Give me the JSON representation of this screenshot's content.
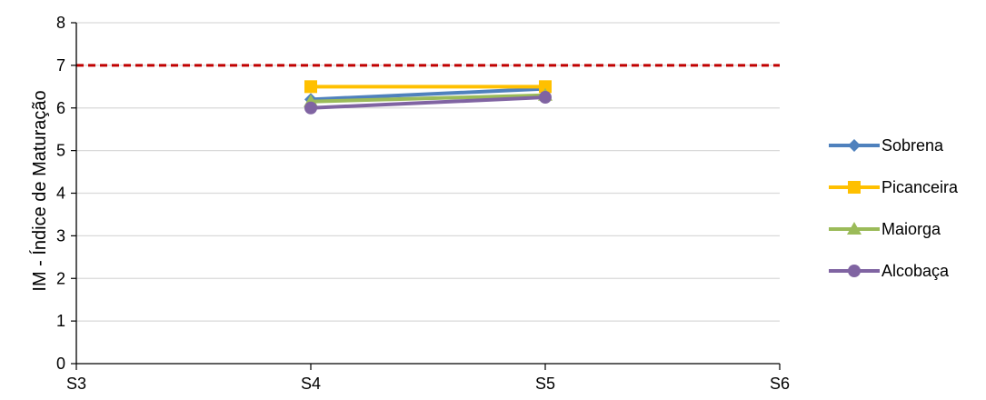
{
  "chart_data": {
    "type": "line",
    "title": "",
    "xlabel": "",
    "ylabel": "IM - Índice de Maturação",
    "categories": [
      "S3",
      "S4",
      "S5",
      "S6"
    ],
    "ylim": [
      0,
      8
    ],
    "yticks": [
      0,
      1,
      2,
      3,
      4,
      5,
      6,
      7,
      8
    ],
    "grid": true,
    "legend": "right",
    "reference_line": {
      "y": 7,
      "color": "#C00000",
      "style": "dashed"
    },
    "series": [
      {
        "name": "Sobrena",
        "color": "#4F81BD",
        "marker": "diamond",
        "values": [
          null,
          6.2,
          6.45,
          null
        ]
      },
      {
        "name": "Picanceira",
        "color": "#FFC000",
        "marker": "square",
        "values": [
          null,
          6.5,
          6.5,
          null
        ]
      },
      {
        "name": "Maiorga",
        "color": "#9BBB59",
        "marker": "triangle",
        "values": [
          null,
          6.15,
          6.3,
          null
        ]
      },
      {
        "name": "Alcobaça",
        "color": "#8064A2",
        "marker": "circle",
        "values": [
          null,
          6.0,
          6.25,
          null
        ]
      }
    ]
  }
}
